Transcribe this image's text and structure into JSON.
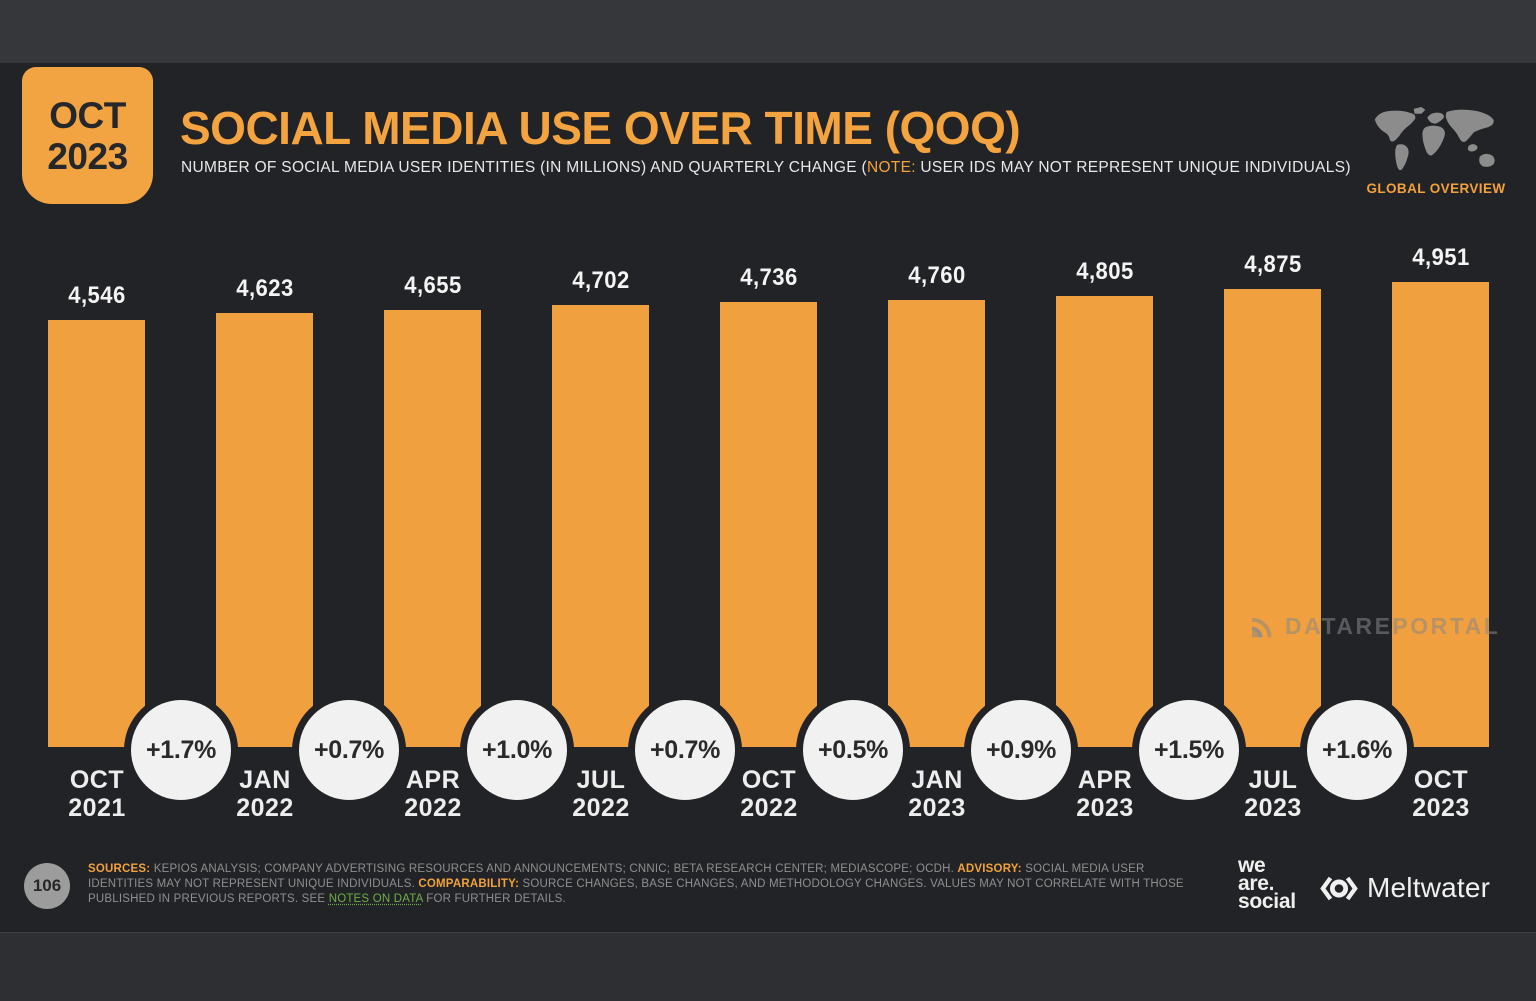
{
  "header": {
    "badge_line1": "OCT",
    "badge_line2": "2023",
    "title": "SOCIAL MEDIA USE OVER TIME (QOQ)",
    "subtitle_prefix": "NUMBER OF SOCIAL MEDIA USER IDENTITIES (IN MILLIONS) AND QUARTERLY CHANGE (",
    "note_label": "NOTE:",
    "subtitle_suffix": " USER IDS MAY NOT REPRESENT UNIQUE INDIVIDUALS)",
    "region_label": "GLOBAL OVERVIEW"
  },
  "chart_data": {
    "type": "bar",
    "title": "SOCIAL MEDIA USE OVER TIME (QOQ)",
    "ylabel": "Social media user identities (millions)",
    "xlabel": "",
    "categories": [
      "OCT 2021",
      "JAN 2022",
      "APR 2022",
      "JUL 2022",
      "OCT 2022",
      "JAN 2023",
      "APR 2023",
      "JUL 2023",
      "OCT 2023"
    ],
    "values": [
      4546,
      4623,
      4655,
      4702,
      4736,
      4760,
      4805,
      4875,
      4951
    ],
    "value_labels": [
      "4,546",
      "4,623",
      "4,655",
      "4,702",
      "4,736",
      "4,760",
      "4,805",
      "4,875",
      "4,951"
    ],
    "qoq_changes": [
      "+1.7%",
      "+0.7%",
      "+1.0%",
      "+0.7%",
      "+0.5%",
      "+0.9%",
      "+1.5%",
      "+1.6%"
    ],
    "unit": "millions",
    "ylim": [
      0,
      4951
    ],
    "grid": false,
    "legend": false,
    "bar_color": "#F0A03E"
  },
  "watermark": {
    "text": "DATAREPORTAL"
  },
  "footer": {
    "page_number": "106",
    "sources_label": "SOURCES:",
    "sources_text": " KEPIOS ANALYSIS; COMPANY ADVERTISING RESOURCES AND ANNOUNCEMENTS; CNNIC; BETA RESEARCH CENTER; MEDIASCOPE; OCDH. ",
    "advisory_label": "ADVISORY:",
    "advisory_text": " SOCIAL MEDIA USER IDENTITIES MAY NOT REPRESENT UNIQUE INDIVIDUALS. ",
    "comparability_label": "COMPARABILITY:",
    "comparability_text": " SOURCE CHANGES, BASE CHANGES, AND METHODOLOGY CHANGES. VALUES MAY NOT CORRELATE WITH THOSE PUBLISHED IN PREVIOUS REPORTS. SEE ",
    "notes_link": "NOTES ON DATA",
    "notes_suffix": " FOR FURTHER DETAILS.",
    "wearesocial_line1": "we",
    "wearesocial_line2": "are.",
    "wearesocial_line3": "social",
    "meltwater_label": "Meltwater"
  },
  "colors": {
    "accent_orange": "#F3A33F",
    "bar_orange": "#F0A03E",
    "slide_background": "#222326",
    "circle_fill": "#F1F1F1",
    "notes_green": "#6FAF46"
  }
}
